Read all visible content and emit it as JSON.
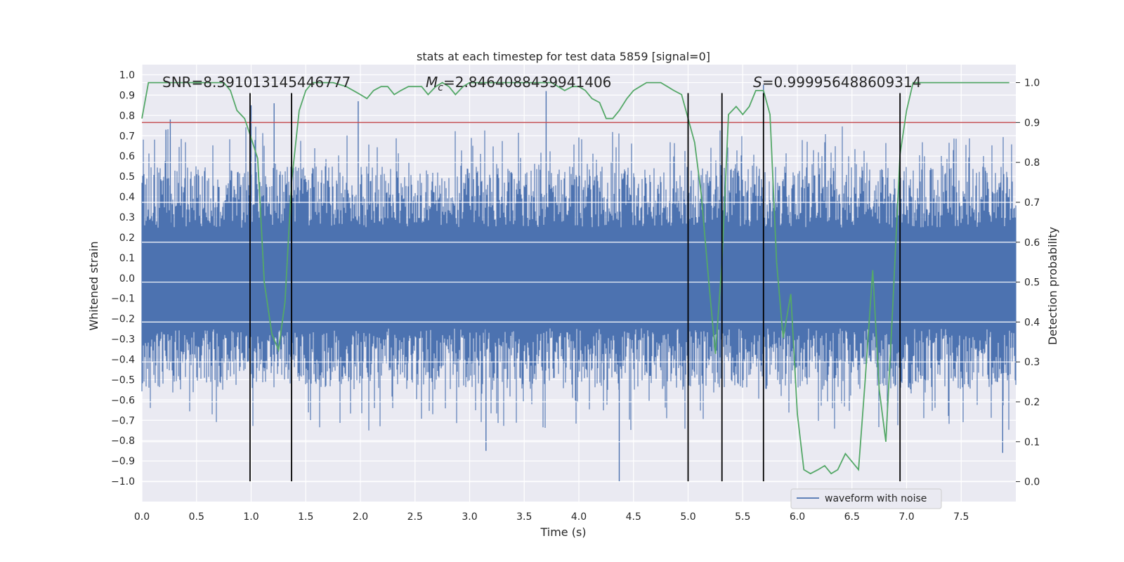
{
  "chart_data": {
    "type": "line",
    "title": "stats at each timestep for test data 5859 [signal=0]",
    "xlabel": "Time (s)",
    "ylabel_left": "Whitened strain",
    "ylabel_right": "Detection probability",
    "xlim": [
      0.0,
      8.0
    ],
    "ylim_left": [
      -1.1,
      1.05
    ],
    "ylim_right": [
      -0.05,
      1.045
    ],
    "x_ticks": [
      0.0,
      0.5,
      1.0,
      1.5,
      2.0,
      2.5,
      3.0,
      3.5,
      4.0,
      4.5,
      5.0,
      5.5,
      6.0,
      6.5,
      7.0,
      7.5
    ],
    "x_tick_labels": [
      "0.0",
      "0.5",
      "1.0",
      "1.5",
      "2.0",
      "2.5",
      "3.0",
      "3.5",
      "4.0",
      "4.5",
      "5.0",
      "5.5",
      "6.0",
      "6.5",
      "7.0",
      "7.5"
    ],
    "y_left_ticks": [
      1.0,
      0.9,
      0.8,
      0.7,
      0.6,
      0.5,
      0.4,
      0.3,
      0.2,
      0.1,
      0.0,
      -0.1,
      -0.2,
      -0.3,
      -0.4,
      -0.5,
      -0.6,
      -0.7,
      -0.8,
      -0.9,
      -1.0
    ],
    "y_left_tick_labels": [
      "1.0",
      "0.9",
      "0.8",
      "0.7",
      "0.6",
      "0.5",
      "0.4",
      "0.3",
      "0.2",
      "0.1",
      "0.0",
      "−0.1",
      "−0.2",
      "−0.3",
      "−0.4",
      "−0.5",
      "−0.6",
      "−0.7",
      "−0.8",
      "−0.9",
      "−1.0"
    ],
    "y_right_ticks": [
      1.0,
      0.9,
      0.8,
      0.7,
      0.6,
      0.5,
      0.4,
      0.3,
      0.2,
      0.1,
      0.0
    ],
    "y_right_tick_labels": [
      "1.0",
      "0.9",
      "0.8",
      "0.7",
      "0.6",
      "0.5",
      "0.4",
      "0.3",
      "0.2",
      "0.1",
      "0.0"
    ],
    "annotations": {
      "snr": "SNR=8.391013145446777",
      "mc_symbol": "M",
      "mc_sub": "c",
      "mc_value": "=2.8464088439941406",
      "s_symbol": "S",
      "s_value": "=0.999956488609314"
    },
    "threshold": {
      "value": 0.9,
      "axis": "right",
      "color": "#c44e52"
    },
    "vertical_lines_x": [
      0.99,
      1.37,
      5.0,
      5.31,
      5.69,
      6.94
    ],
    "vertical_lines_range_left": [
      -1.0,
      0.91
    ],
    "waveform": {
      "name": "waveform with noise",
      "color": "#4c72b0",
      "envelope_positive_approx": 0.55,
      "envelope_negative_approx": -0.55,
      "notable_spikes": [
        [
          0.22,
          0.73
        ],
        [
          0.26,
          0.78
        ],
        [
          1.0,
          0.85
        ],
        [
          1.21,
          0.86
        ],
        [
          1.98,
          0.87
        ],
        [
          3.7,
          0.92
        ],
        [
          4.37,
          -1.0
        ],
        [
          5.69,
          0.95
        ],
        [
          3.15,
          -0.85
        ],
        [
          7.88,
          -0.86
        ]
      ]
    },
    "detection_probability": {
      "name": "Detection probability",
      "color": "#55a868",
      "x": [
        0.0,
        0.06,
        0.12,
        0.25,
        0.5,
        0.75,
        0.81,
        0.87,
        0.94,
        0.99,
        1.06,
        1.12,
        1.19,
        1.25,
        1.31,
        1.37,
        1.44,
        1.5,
        1.56,
        1.62,
        1.75,
        1.87,
        2.0,
        2.06,
        2.12,
        2.19,
        2.25,
        2.31,
        2.37,
        2.44,
        2.5,
        2.56,
        2.62,
        2.69,
        2.75,
        2.81,
        2.87,
        2.94,
        3.0,
        3.06,
        3.12,
        3.19,
        3.25,
        3.5,
        3.75,
        3.81,
        3.87,
        3.94,
        4.0,
        4.06,
        4.12,
        4.19,
        4.25,
        4.31,
        4.37,
        4.44,
        4.5,
        4.56,
        4.62,
        4.69,
        4.75,
        4.81,
        4.87,
        4.94,
        5.0,
        5.06,
        5.12,
        5.19,
        5.25,
        5.31,
        5.37,
        5.44,
        5.5,
        5.56,
        5.62,
        5.69,
        5.75,
        5.81,
        5.87,
        5.94,
        6.0,
        6.06,
        6.12,
        6.19,
        6.25,
        6.31,
        6.37,
        6.44,
        6.5,
        6.56,
        6.62,
        6.69,
        6.75,
        6.81,
        6.87,
        6.94,
        7.0,
        7.06,
        7.12,
        7.19,
        7.25,
        7.5,
        7.75,
        7.94
      ],
      "values": [
        0.91,
        1.0,
        1.0,
        1.0,
        1.0,
        1.0,
        0.98,
        0.93,
        0.91,
        0.87,
        0.81,
        0.5,
        0.37,
        0.33,
        0.45,
        0.75,
        0.93,
        0.98,
        1.0,
        1.0,
        1.0,
        0.99,
        0.97,
        0.96,
        0.98,
        0.99,
        0.99,
        0.97,
        0.98,
        0.99,
        0.99,
        0.99,
        0.97,
        0.99,
        1.0,
        0.99,
        0.97,
        0.99,
        1.0,
        1.0,
        1.0,
        1.0,
        1.0,
        1.0,
        1.0,
        0.99,
        0.98,
        0.99,
        0.99,
        0.98,
        0.96,
        0.95,
        0.91,
        0.91,
        0.93,
        0.96,
        0.98,
        0.99,
        1.0,
        1.0,
        1.0,
        0.99,
        0.98,
        0.97,
        0.91,
        0.85,
        0.72,
        0.5,
        0.32,
        0.55,
        0.92,
        0.94,
        0.92,
        0.94,
        0.98,
        0.98,
        0.92,
        0.55,
        0.36,
        0.47,
        0.17,
        0.03,
        0.02,
        0.03,
        0.04,
        0.02,
        0.03,
        0.07,
        0.05,
        0.03,
        0.25,
        0.53,
        0.23,
        0.1,
        0.42,
        0.82,
        0.93,
        1.0,
        1.0,
        1.0,
        1.0,
        1.0,
        1.0,
        1.0
      ]
    },
    "legend": {
      "entries": [
        "waveform with noise"
      ],
      "placement": "bottom-right"
    },
    "grid": true
  }
}
